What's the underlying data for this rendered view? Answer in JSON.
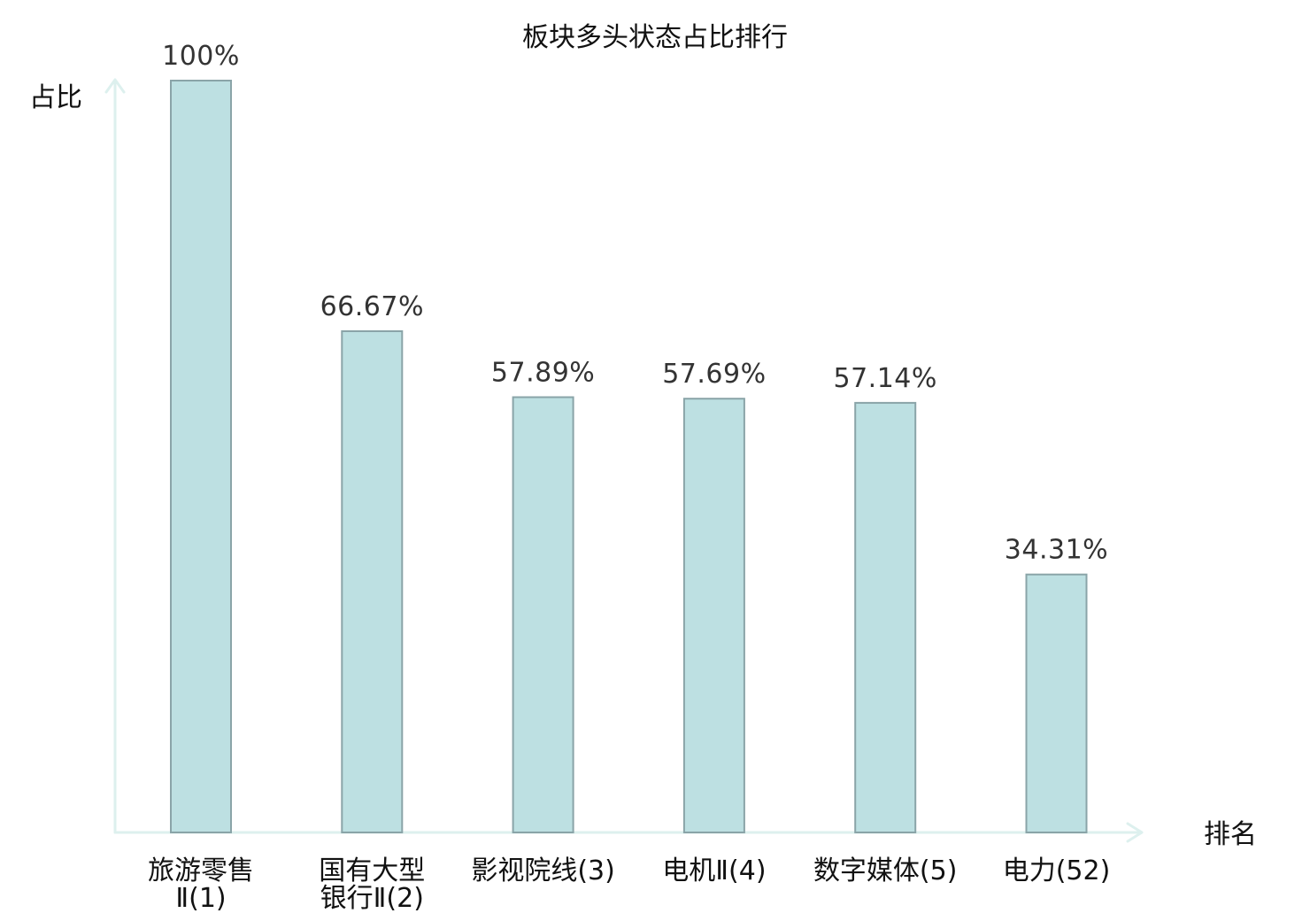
{
  "chart_data": {
    "type": "bar",
    "title": "板块多头状态占比排行",
    "ylabel": "占比",
    "xlabel": "排名",
    "ylim": [
      0,
      100
    ],
    "grid": false,
    "categories": [
      {
        "name": "旅游零售Ⅱ",
        "rank": "(1)",
        "highlight": false,
        "lines": [
          "旅游零售",
          "Ⅱ(1)"
        ]
      },
      {
        "name": "国有大型银行Ⅱ",
        "rank": "(2)",
        "highlight": false,
        "lines": [
          "国有大型",
          "银行Ⅱ(2)"
        ]
      },
      {
        "name": "影视院线",
        "rank": "(3)",
        "highlight": false,
        "lines": [
          "影视院线(3)"
        ]
      },
      {
        "name": "电机Ⅱ",
        "rank": "(4)",
        "highlight": false,
        "lines": [
          "电机Ⅱ(4)"
        ]
      },
      {
        "name": "数字媒体",
        "rank": "(5)",
        "highlight": false,
        "lines": [
          "数字媒体(5)"
        ]
      },
      {
        "name": "电力",
        "rank": "(52)",
        "highlight": true,
        "lines": [
          "电力(52)"
        ]
      }
    ],
    "values": [
      100,
      66.67,
      57.89,
      57.69,
      57.14,
      34.31
    ],
    "value_labels": [
      "100%",
      "66.67%",
      "57.89%",
      "57.69%",
      "57.14%",
      "34.31%"
    ],
    "colors": {
      "bar_fill": "#bde0e2",
      "bar_stroke": "#8aa4a8",
      "axis": "#ddf0ee",
      "highlight_text": "#e8232a",
      "text": "#111111",
      "value_text": "#333333"
    }
  }
}
